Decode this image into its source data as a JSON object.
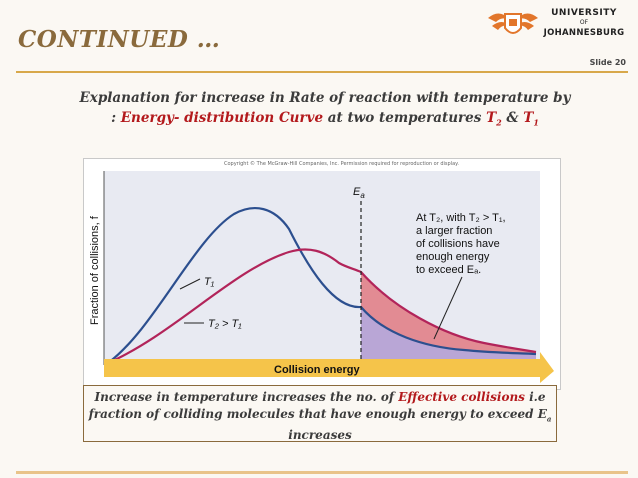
{
  "header": {
    "title": "CONTINUED …",
    "slide_number": "Slide 20",
    "logo": {
      "line1": "UNIVERSITY",
      "line2": "OF",
      "line3": "JOHANNESBURG"
    }
  },
  "heading": {
    "line1": "Explanation for increase in Rate of reaction with temperature by",
    "prefix": ": ",
    "highlight": "Energy- distribution Curve",
    "middle": " at two temperatures ",
    "t2": "T",
    "t2_sub": "2",
    "amp": " & ",
    "t1": "T",
    "t1_sub": "1"
  },
  "figure": {
    "copyright": "Copyright © The McGraw-Hill Companies, Inc. Permission required for reproduction or display.",
    "ea_label": "E",
    "ea_sub": "a",
    "annotation": {
      "line1": "At T₂, with T₂ > T₁,",
      "line2": "a larger fraction",
      "line3": "of collisions have",
      "line4": "enough energy",
      "line5": "to exceed Eₐ."
    },
    "label_t1": "T₁",
    "label_t2": "T₂ > T₁",
    "y_axis_label": "Fraction of collisions, f",
    "x_axis_label": "Collision energy",
    "colors": {
      "t1_curve": "#2c4f8f",
      "t2_curve": "#b2245a",
      "plot_bg": "#e8eaf2",
      "fill_t2": "#e28b93",
      "fill_t1": "#b9a6d6",
      "arrow": "#f5c44a"
    }
  },
  "caption": {
    "line1_a": "Increase in temperature increases the no. of ",
    "line1_red": "Effective collisions",
    "line1_b": " i.e",
    "line2": "fraction of colliding molecules that have enough energy to exceed E",
    "line2_sub": "a",
    "line3": "increases"
  }
}
